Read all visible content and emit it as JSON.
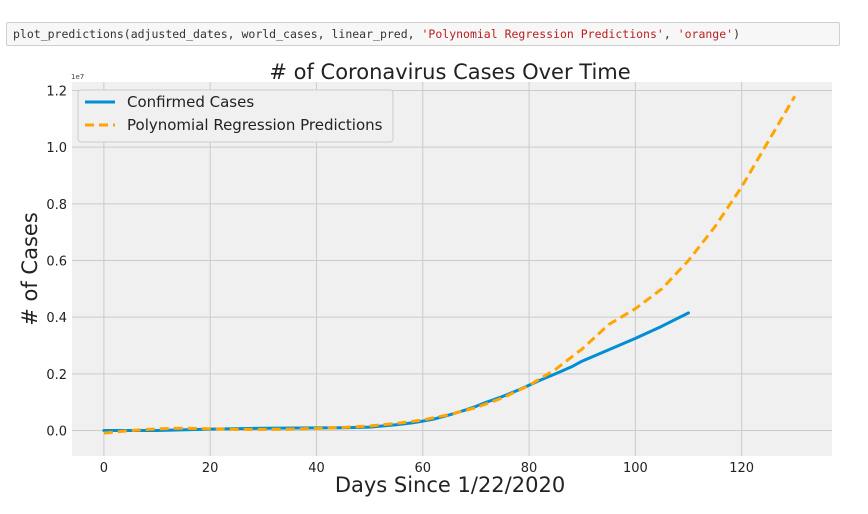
{
  "code_cell": {
    "func": "plot_predictions",
    "args_plain": "(adjusted_dates, world_cases, linear_pred, ",
    "arg_title": "'Polynomial Regression Predictions'",
    "sep": ", ",
    "arg_color": "'orange'",
    "close": ")"
  },
  "chart_data": {
    "type": "line",
    "title": "# of Coronavirus Cases Over Time",
    "xlabel": "Days Since 1/22/2020",
    "ylabel": "# of Cases",
    "y_scale_label": "1e7",
    "xlim": [
      -6,
      137
    ],
    "ylim": [
      -0.09,
      1.23
    ],
    "x_ticks": [
      0,
      20,
      40,
      60,
      80,
      100,
      120
    ],
    "y_ticks": [
      0.0,
      0.2,
      0.4,
      0.6,
      0.8,
      1.0,
      1.2
    ],
    "y_tick_labels": [
      "0.0",
      "0.2",
      "0.4",
      "0.6",
      "0.8",
      "1.0",
      "1.2"
    ],
    "grid": true,
    "legend_position": "top-left",
    "series": [
      {
        "name": "Confirmed Cases",
        "color": "#008fd5",
        "style": "solid",
        "x": [
          0,
          10,
          20,
          30,
          40,
          45,
          50,
          55,
          58,
          60,
          62,
          65,
          68,
          70,
          72,
          75,
          78,
          80,
          82,
          85,
          88,
          90,
          95,
          100,
          105,
          110
        ],
        "y": [
          0.0,
          0.0,
          0.005,
          0.008,
          0.009,
          0.01,
          0.012,
          0.02,
          0.027,
          0.033,
          0.04,
          0.055,
          0.072,
          0.085,
          0.1,
          0.12,
          0.143,
          0.16,
          0.177,
          0.2,
          0.225,
          0.245,
          0.285,
          0.325,
          0.368,
          0.415
        ]
      },
      {
        "name": "Polynomial Regression Predictions",
        "color": "#ffa500",
        "style": "dashed",
        "x": [
          0,
          5,
          10,
          15,
          20,
          25,
          30,
          35,
          40,
          45,
          50,
          55,
          60,
          65,
          70,
          75,
          80,
          85,
          90,
          95,
          100,
          105,
          110,
          115,
          120,
          125,
          130
        ],
        "y": [
          -0.009,
          0.0,
          0.006,
          0.008,
          0.006,
          0.004,
          0.004,
          0.005,
          0.007,
          0.011,
          0.016,
          0.025,
          0.037,
          0.056,
          0.081,
          0.115,
          0.159,
          0.216,
          0.288,
          0.374,
          0.43,
          0.5,
          0.6,
          0.72,
          0.86,
          1.02,
          1.18
        ]
      }
    ]
  }
}
